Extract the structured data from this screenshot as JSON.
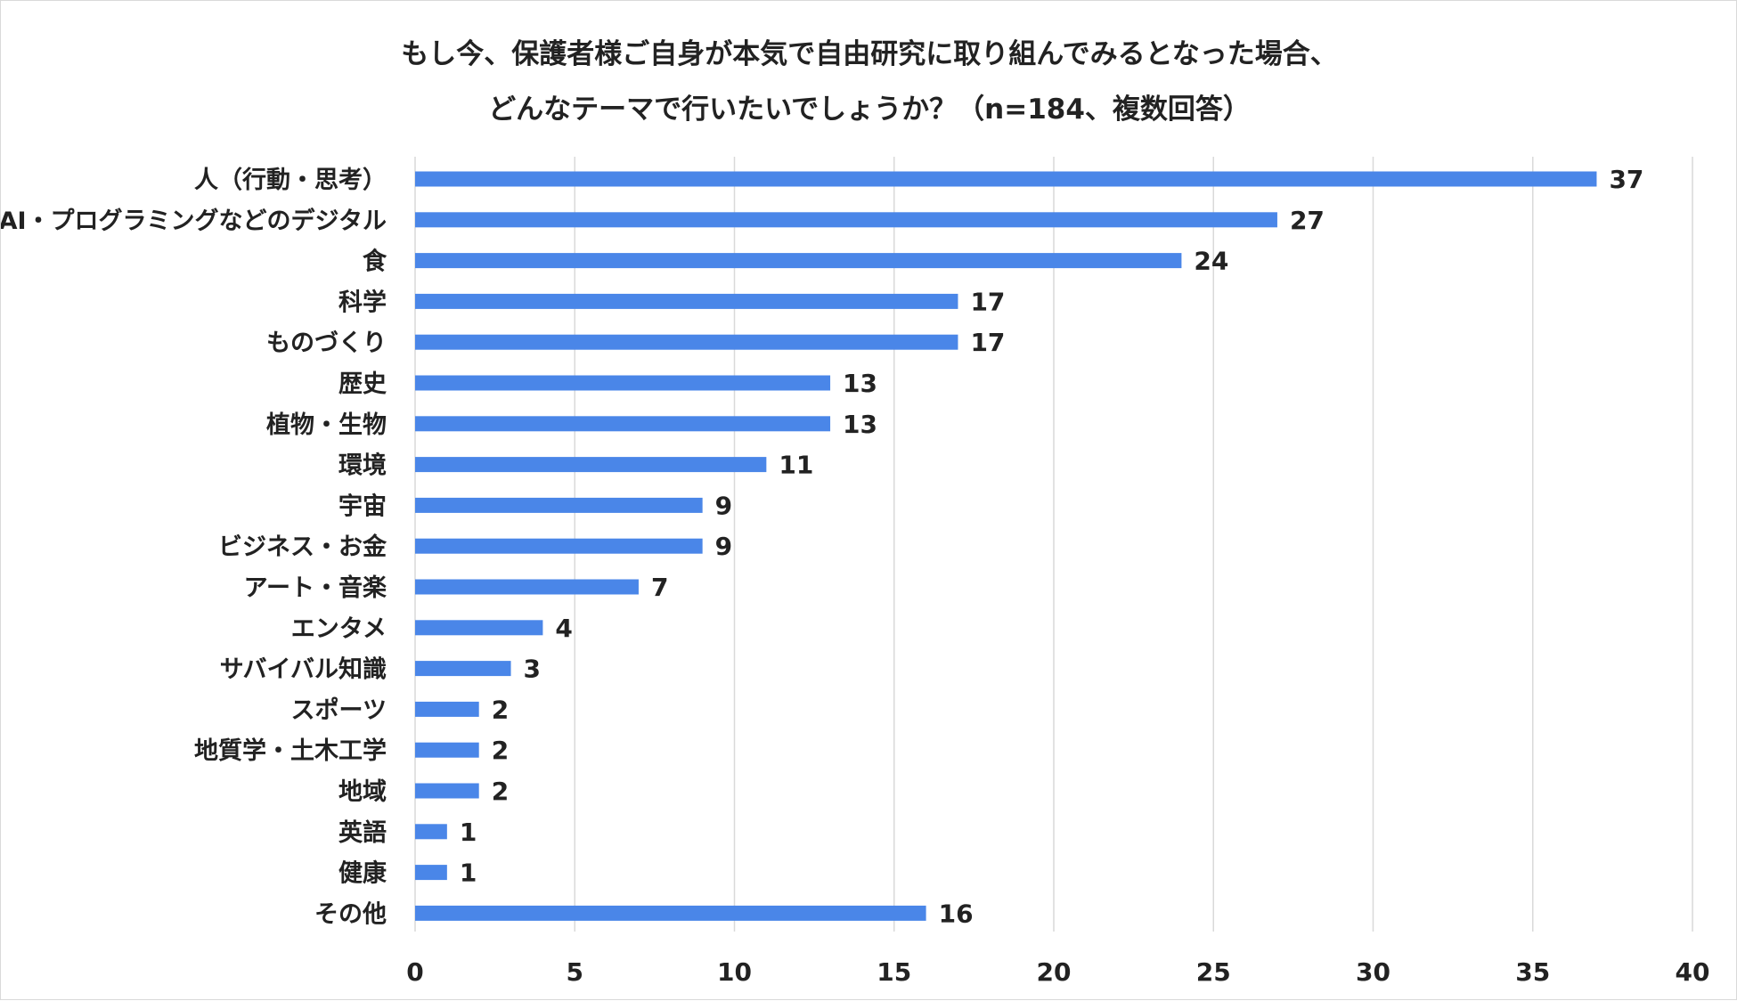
{
  "chart_data": {
    "type": "bar",
    "orientation": "horizontal",
    "title": "もし今、保護者様ご自身が本気で自由研究に取り組んでみるとなった場合、",
    "subtitle": "どんなテーマで行いたいでしょうか？（n=184、複数回答）",
    "categories": [
      "人（行動・思考）",
      "AI・プログラミングなどのデジタル",
      "食",
      "科学",
      "ものづくり",
      "歴史",
      "植物・生物",
      "環境",
      "宇宙",
      "ビジネス・お金",
      "アート・音楽",
      "エンタメ",
      "サバイバル知識",
      "スポーツ",
      "地質学・土木工学",
      "地域",
      "英語",
      "健康",
      "その他"
    ],
    "values": [
      37,
      27,
      24,
      17,
      17,
      13,
      13,
      11,
      9,
      9,
      7,
      4,
      3,
      2,
      2,
      2,
      1,
      1,
      16
    ],
    "xlim": [
      0,
      40
    ],
    "xticks": [
      0,
      5,
      10,
      15,
      20,
      25,
      30,
      35,
      40
    ],
    "grid": true,
    "data_labels": true,
    "bar_color": "#4a86e8",
    "grid_color": "#d9d9d9"
  }
}
